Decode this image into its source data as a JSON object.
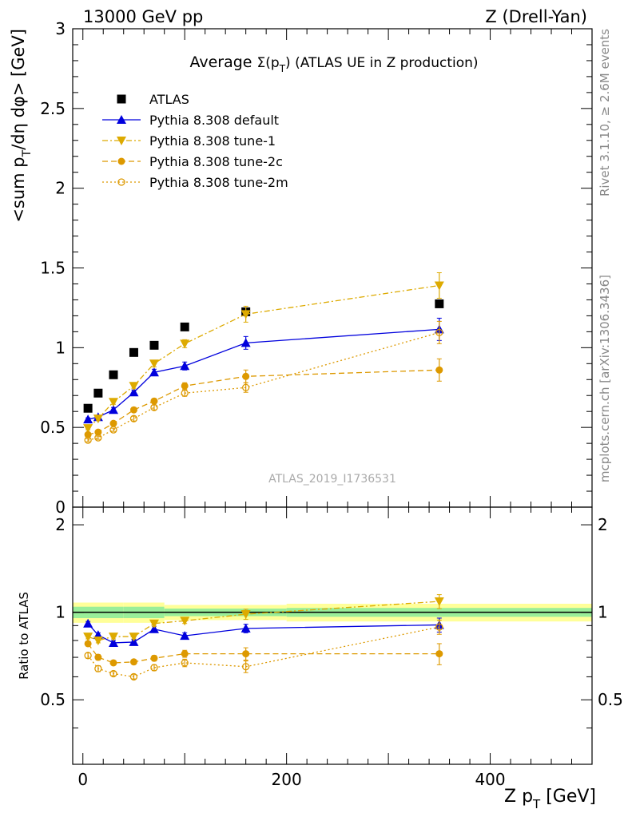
{
  "header": {
    "left": "13000 GeV pp",
    "right": "Z (Drell-Yan)"
  },
  "side_labels": {
    "rivet": "Rivet 3.1.10, ≥ 2.6M events",
    "mcplots": "mcplots.cern.ch [arXiv:1306.3436]"
  },
  "watermark": "ATLAS_2019_I1736531",
  "chart_data": [
    {
      "type": "scatter",
      "title": "Average Σ(p_T) (ATLAS UE in Z production)",
      "title_parts": {
        "pre": "Average ",
        "sym": "Σ(p",
        "sub": "T",
        "post": ") (ATLAS UE in Z production)"
      },
      "xlabel": "Z p_T [GeV]",
      "xlabel_parts": {
        "pre": "Z p",
        "sub": "T",
        "post": " [GeV]"
      },
      "ylabel": "<sum p_T/dη dφ> [GeV]",
      "ylabel_parts": {
        "pre": "<sum p",
        "sub": "T",
        "post": "/dη dφ> [GeV]"
      },
      "xlim": [
        -10,
        500
      ],
      "ylim": [
        0,
        3
      ],
      "yticks": [
        0,
        0.5,
        1,
        1.5,
        2,
        2.5,
        3
      ],
      "ytick_labels": [
        "0",
        "0.5",
        "1",
        "1.5",
        "2",
        "2.5",
        "3"
      ],
      "legend_position": "top-left",
      "x": [
        5,
        15,
        30,
        50,
        70,
        100,
        160,
        350
      ],
      "series": [
        {
          "name": "ATLAS",
          "color": "#000000",
          "marker": "square",
          "line": "none",
          "y": [
            0.62,
            0.715,
            0.83,
            0.97,
            1.015,
            1.13,
            1.225,
            1.275
          ],
          "err": [
            0,
            0,
            0,
            0,
            0,
            0,
            0,
            0
          ]
        },
        {
          "name": "Pythia 8.308 default",
          "color": "#0000dd",
          "marker": "triangle-up",
          "line": "solid",
          "y": [
            0.55,
            0.565,
            0.61,
            0.72,
            0.845,
            0.885,
            1.03,
            1.115
          ],
          "err": [
            0.01,
            0.01,
            0.015,
            0.015,
            0.02,
            0.025,
            0.04,
            0.07
          ]
        },
        {
          "name": "Pythia 8.308 tune-1",
          "color": "#ddaa00",
          "marker": "triangle-down",
          "line": "dashdot",
          "y": [
            0.495,
            0.555,
            0.66,
            0.76,
            0.9,
            1.025,
            1.21,
            1.39
          ],
          "err": [
            0.01,
            0.01,
            0.015,
            0.015,
            0.02,
            0.025,
            0.05,
            0.08
          ]
        },
        {
          "name": "Pythia 8.308 tune-2c",
          "color": "#dd9900",
          "marker": "circle",
          "line": "dashed",
          "y": [
            0.455,
            0.47,
            0.525,
            0.61,
            0.665,
            0.76,
            0.82,
            0.86
          ],
          "err": [
            0.01,
            0.01,
            0.01,
            0.015,
            0.015,
            0.02,
            0.04,
            0.07
          ]
        },
        {
          "name": "Pythia 8.308 tune-2m",
          "color": "#dd9900",
          "marker": "circle-open",
          "line": "dotted",
          "y": [
            0.42,
            0.435,
            0.485,
            0.555,
            0.625,
            0.715,
            0.75,
            1.095
          ],
          "err": [
            0.01,
            0.01,
            0.01,
            0.015,
            0.015,
            0.02,
            0.03,
            0.07
          ]
        }
      ]
    },
    {
      "type": "scatter",
      "title": "",
      "xlabel": "Z p_T [GeV]",
      "ylabel": "Ratio to ATLAS",
      "xlim": [
        -10,
        500
      ],
      "ylim": [
        0.3,
        2.3
      ],
      "yticks": [
        0.5,
        1,
        2
      ],
      "ytick_labels": [
        "0.5",
        "1",
        "2"
      ],
      "xticks": [
        0,
        200,
        400
      ],
      "xtick_labels": [
        "0",
        "200",
        "400"
      ],
      "reference_line": 1,
      "bands": [
        {
          "x0": -10,
          "x1": 40,
          "yellow": [
            0.92,
            1.08
          ],
          "green": [
            0.955,
            1.045
          ]
        },
        {
          "x0": 40,
          "x1": 80,
          "yellow": [
            0.92,
            1.08
          ],
          "green": [
            0.955,
            1.045
          ]
        },
        {
          "x0": 80,
          "x1": 200,
          "yellow": [
            0.94,
            1.06
          ],
          "green": [
            0.97,
            1.03
          ]
        },
        {
          "x0": 200,
          "x1": 500,
          "yellow": [
            0.93,
            1.07
          ],
          "green": [
            0.965,
            1.035
          ]
        }
      ],
      "x": [
        5,
        15,
        30,
        50,
        70,
        100,
        160,
        350
      ],
      "series": [
        {
          "name": "Pythia 8.308 default",
          "color": "#0000dd",
          "marker": "triangle-up",
          "line": "solid",
          "y": [
            0.915,
            0.835,
            0.785,
            0.79,
            0.875,
            0.83,
            0.88,
            0.905
          ],
          "err": [
            0.015,
            0.015,
            0.015,
            0.015,
            0.02,
            0.02,
            0.03,
            0.05
          ]
        },
        {
          "name": "Pythia 8.308 tune-1",
          "color": "#ddaa00",
          "marker": "triangle-down",
          "line": "dashdot",
          "y": [
            0.825,
            0.8,
            0.825,
            0.825,
            0.915,
            0.935,
            0.985,
            1.09
          ],
          "err": [
            0.015,
            0.015,
            0.015,
            0.015,
            0.02,
            0.02,
            0.04,
            0.06
          ]
        },
        {
          "name": "Pythia 8.308 tune-2c",
          "color": "#dd9900",
          "marker": "circle",
          "line": "dashed",
          "y": [
            0.78,
            0.7,
            0.67,
            0.675,
            0.695,
            0.72,
            0.72,
            0.72
          ],
          "err": [
            0.015,
            0.015,
            0.01,
            0.01,
            0.015,
            0.02,
            0.035,
            0.06
          ]
        },
        {
          "name": "Pythia 8.308 tune-2m",
          "color": "#dd9900",
          "marker": "circle-open",
          "line": "dotted",
          "y": [
            0.71,
            0.64,
            0.615,
            0.6,
            0.645,
            0.67,
            0.65,
            0.89
          ],
          "err": [
            0.015,
            0.015,
            0.01,
            0.01,
            0.015,
            0.02,
            0.03,
            0.05
          ]
        }
      ]
    }
  ]
}
